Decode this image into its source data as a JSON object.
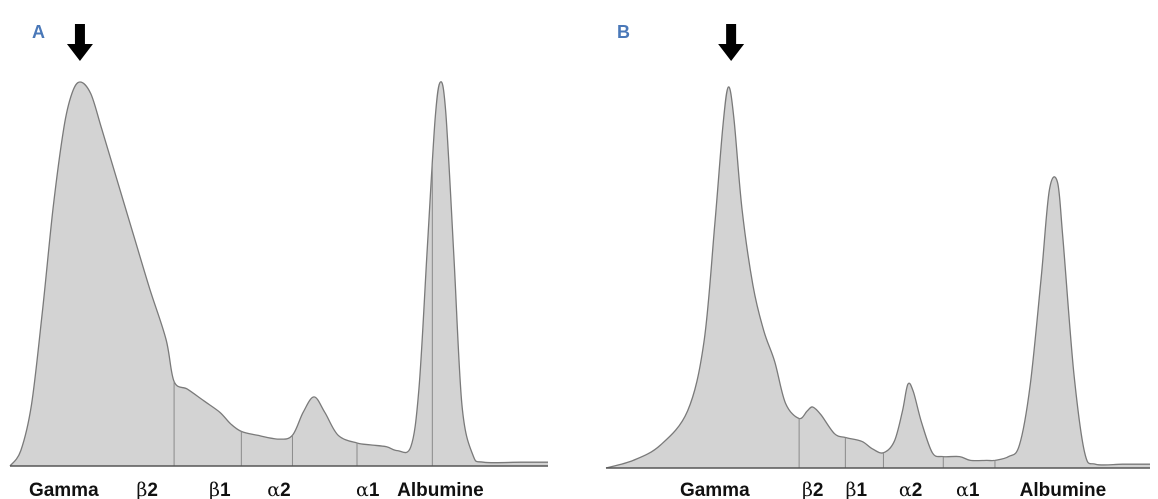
{
  "colors": {
    "fill": "#d3d3d3",
    "outline": "#7a7a7a",
    "baseline": "#555555",
    "divider": "#8a8a8a",
    "panel_label": "#4a78b8",
    "arrow": "#000000"
  },
  "icons": {
    "arrow": "down-arrow-icon"
  },
  "chart_data": [
    {
      "type": "area",
      "panel_label": "A",
      "arrow_position": 0.13,
      "title": "",
      "xlabel": "",
      "ylabel": "",
      "ylim": [
        0,
        1
      ],
      "grid": false,
      "categories": [
        {
          "label": "Gamma",
          "greek": "",
          "suffix": "",
          "center": 0.1
        },
        {
          "label": "",
          "greek": "β",
          "suffix": "2",
          "center": 0.255
        },
        {
          "label": "",
          "greek": "β",
          "suffix": "1",
          "center": 0.39
        },
        {
          "label": "",
          "greek": "α",
          "suffix": "2",
          "center": 0.5
        },
        {
          "label": "",
          "greek": "α",
          "suffix": "1",
          "center": 0.665
        },
        {
          "label": "Albumine",
          "greek": "",
          "suffix": "",
          "center": 0.8
        }
      ],
      "boundaries": [
        0.305,
        0.43,
        0.525,
        0.645,
        0.785
      ],
      "series": [
        {
          "points": [
            [
              0.0,
              0.0
            ],
            [
              0.02,
              0.04
            ],
            [
              0.04,
              0.16
            ],
            [
              0.06,
              0.4
            ],
            [
              0.08,
              0.67
            ],
            [
              0.1,
              0.88
            ],
            [
              0.115,
              0.97
            ],
            [
              0.13,
              1.0
            ],
            [
              0.15,
              0.97
            ],
            [
              0.17,
              0.88
            ],
            [
              0.2,
              0.74
            ],
            [
              0.23,
              0.6
            ],
            [
              0.26,
              0.46
            ],
            [
              0.29,
              0.33
            ],
            [
              0.305,
              0.22
            ],
            [
              0.33,
              0.2
            ],
            [
              0.36,
              0.17
            ],
            [
              0.39,
              0.14
            ],
            [
              0.41,
              0.11
            ],
            [
              0.43,
              0.09
            ],
            [
              0.46,
              0.08
            ],
            [
              0.5,
              0.07
            ],
            [
              0.525,
              0.08
            ],
            [
              0.545,
              0.14
            ],
            [
              0.565,
              0.18
            ],
            [
              0.585,
              0.14
            ],
            [
              0.61,
              0.08
            ],
            [
              0.645,
              0.06
            ],
            [
              0.67,
              0.055
            ],
            [
              0.7,
              0.05
            ],
            [
              0.72,
              0.04
            ],
            [
              0.745,
              0.05
            ],
            [
              0.76,
              0.2
            ],
            [
              0.775,
              0.55
            ],
            [
              0.79,
              0.9
            ],
            [
              0.8,
              1.0
            ],
            [
              0.81,
              0.92
            ],
            [
              0.825,
              0.55
            ],
            [
              0.84,
              0.16
            ],
            [
              0.86,
              0.03
            ],
            [
              0.88,
              0.01
            ],
            [
              0.95,
              0.01
            ],
            [
              1.0,
              0.01
            ]
          ]
        }
      ]
    },
    {
      "type": "area",
      "panel_label": "B",
      "arrow_position": 0.23,
      "title": "",
      "xlabel": "",
      "ylabel": "",
      "ylim": [
        0,
        1
      ],
      "grid": false,
      "categories": [
        {
          "label": "Gamma",
          "greek": "",
          "suffix": "",
          "center": 0.2
        },
        {
          "label": "",
          "greek": "β",
          "suffix": "2",
          "center": 0.38
        },
        {
          "label": "",
          "greek": "β",
          "suffix": "1",
          "center": 0.46
        },
        {
          "label": "",
          "greek": "α",
          "suffix": "2",
          "center": 0.56
        },
        {
          "label": "",
          "greek": "α",
          "suffix": "1",
          "center": 0.665
        },
        {
          "label": "Albumine",
          "greek": "",
          "suffix": "",
          "center": 0.84
        }
      ],
      "boundaries": [
        0.355,
        0.44,
        0.51,
        0.62,
        0.715
      ],
      "series": [
        {
          "points": [
            [
              0.0,
              0.0
            ],
            [
              0.05,
              0.02
            ],
            [
              0.1,
              0.06
            ],
            [
              0.15,
              0.15
            ],
            [
              0.18,
              0.33
            ],
            [
              0.2,
              0.64
            ],
            [
              0.215,
              0.9
            ],
            [
              0.225,
              1.0
            ],
            [
              0.235,
              0.92
            ],
            [
              0.25,
              0.68
            ],
            [
              0.27,
              0.48
            ],
            [
              0.29,
              0.36
            ],
            [
              0.31,
              0.28
            ],
            [
              0.33,
              0.17
            ],
            [
              0.355,
              0.13
            ],
            [
              0.37,
              0.15
            ],
            [
              0.38,
              0.16
            ],
            [
              0.395,
              0.14
            ],
            [
              0.42,
              0.09
            ],
            [
              0.44,
              0.08
            ],
            [
              0.47,
              0.07
            ],
            [
              0.49,
              0.05
            ],
            [
              0.51,
              0.04
            ],
            [
              0.53,
              0.07
            ],
            [
              0.545,
              0.15
            ],
            [
              0.555,
              0.22
            ],
            [
              0.565,
              0.2
            ],
            [
              0.58,
              0.12
            ],
            [
              0.6,
              0.04
            ],
            [
              0.62,
              0.03
            ],
            [
              0.65,
              0.03
            ],
            [
              0.67,
              0.02
            ],
            [
              0.7,
              0.02
            ],
            [
              0.715,
              0.02
            ],
            [
              0.74,
              0.03
            ],
            [
              0.76,
              0.06
            ],
            [
              0.78,
              0.22
            ],
            [
              0.8,
              0.5
            ],
            [
              0.815,
              0.73
            ],
            [
              0.83,
              0.75
            ],
            [
              0.84,
              0.6
            ],
            [
              0.86,
              0.25
            ],
            [
              0.88,
              0.04
            ],
            [
              0.9,
              0.01
            ],
            [
              0.95,
              0.01
            ],
            [
              1.0,
              0.01
            ]
          ]
        }
      ]
    }
  ]
}
